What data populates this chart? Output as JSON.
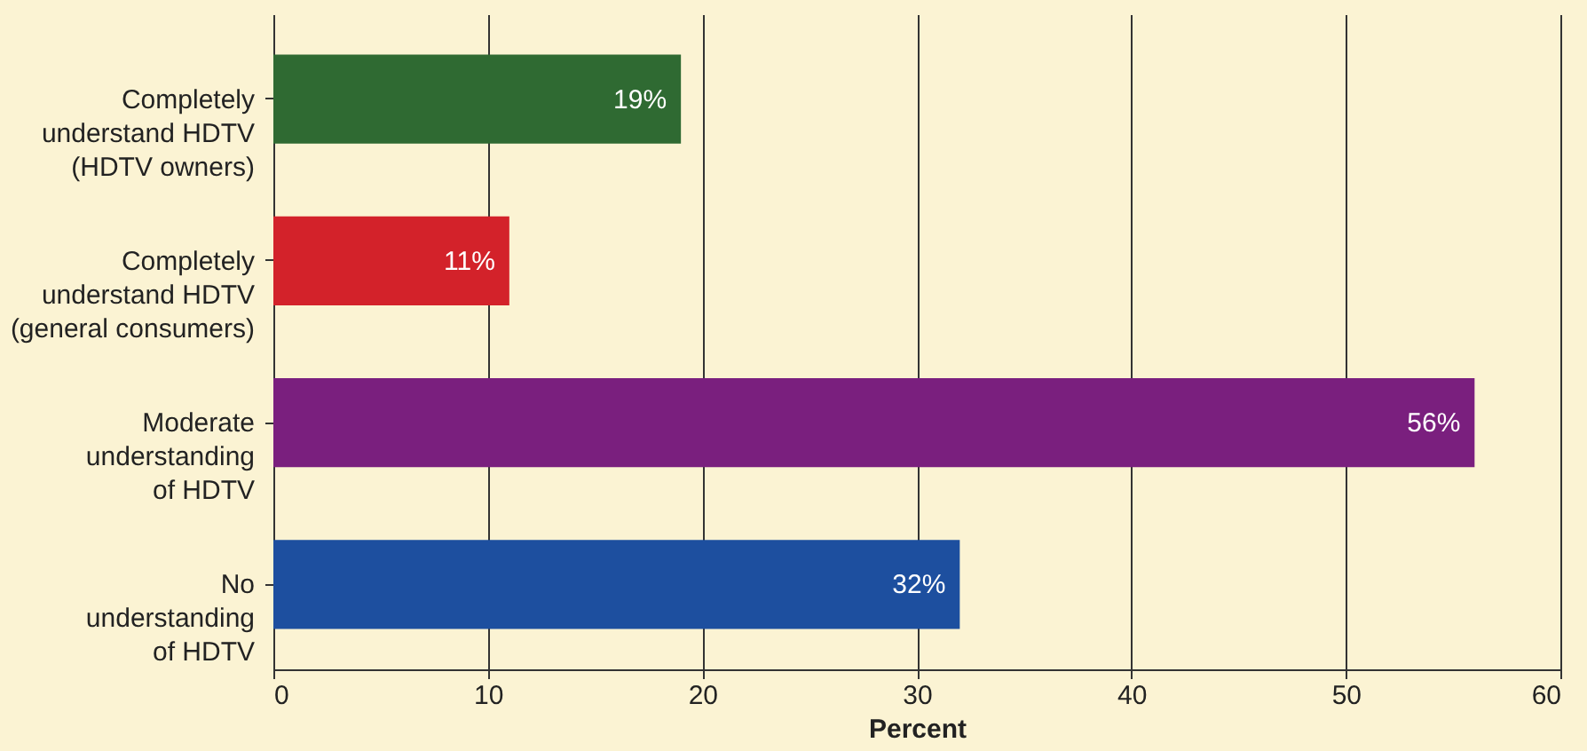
{
  "chart_data": {
    "type": "bar",
    "orientation": "horizontal",
    "xlabel": "Percent",
    "categories": [
      "Completely\nunderstand HDTV\n(HDTV owners)",
      "Completely\nunderstand HDTV\n(general consumers)",
      "Moderate\nunderstanding\nof HDTV",
      "No\nunderstanding\nof HDTV"
    ],
    "values": [
      19,
      11,
      56,
      32
    ],
    "colors": [
      "#2f6a32",
      "#d3222a",
      "#7a1f7e",
      "#1d4f9f"
    ],
    "value_labels": [
      "19%",
      "11%",
      "56%",
      "32%"
    ],
    "xlim": [
      0,
      60
    ],
    "xticks": [
      0,
      10,
      20,
      30,
      40,
      50,
      60
    ],
    "grid": "x"
  }
}
